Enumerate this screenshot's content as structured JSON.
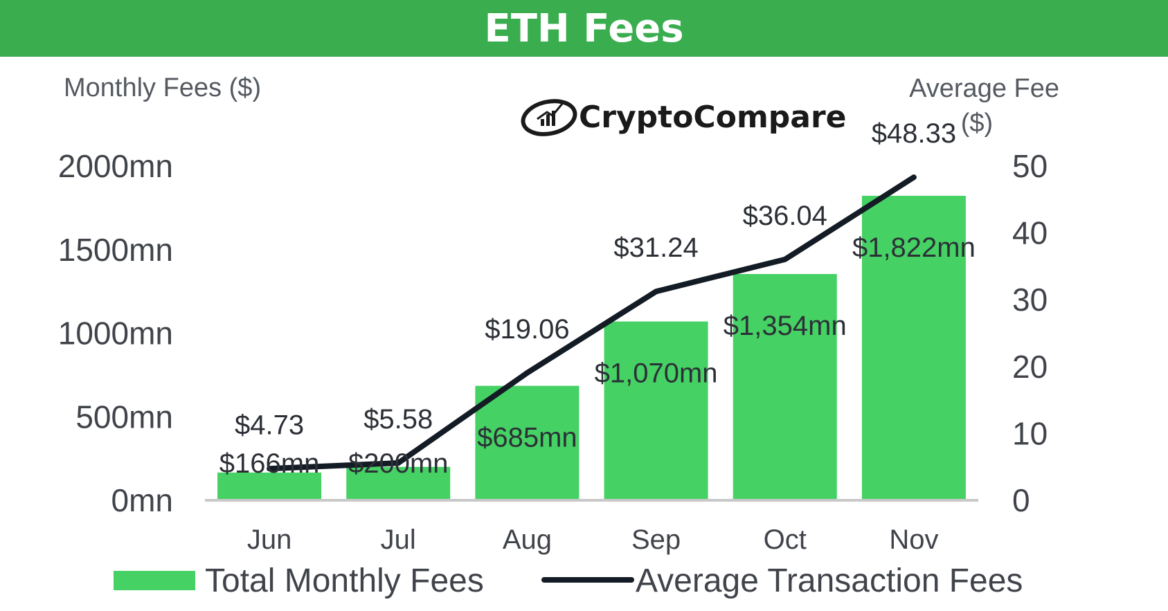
{
  "header": {
    "title": "ETH Fees"
  },
  "logo": {
    "text": "CryptoCompare",
    "icon": "chart-logo-icon"
  },
  "colors": {
    "header": "#3aae4f",
    "bar": "#45d164",
    "line": "#131b24",
    "axis": "#c9c9c9"
  },
  "chart_data": {
    "type": "bar",
    "categories": [
      "Jun",
      "Jul",
      "Aug",
      "Sep",
      "Oct",
      "Nov"
    ],
    "series": [
      {
        "name": "Total Monthly Fees",
        "type": "bar",
        "axis": "left",
        "values": [
          166,
          200,
          685,
          1070,
          1354,
          1822
        ],
        "labels": [
          "$166mn",
          "$200mn",
          "$685mn",
          "$1,070mn",
          "$1,354mn",
          "$1,822mn"
        ]
      },
      {
        "name": "Average Transaction Fees",
        "type": "line",
        "axis": "right",
        "values": [
          4.73,
          5.58,
          19.06,
          31.24,
          36.04,
          48.33
        ],
        "labels": [
          "$4.73",
          "$5.58",
          "$19.06",
          "$31.24",
          "$36.04",
          "$48.33"
        ]
      }
    ],
    "y_left": {
      "label": "Monthly Fees ($)",
      "lim": [
        0,
        2000
      ],
      "ticks": [
        0,
        500,
        1000,
        1500,
        2000
      ],
      "tick_labels": [
        "0mn",
        "500mn",
        "1000mn",
        "1500mn",
        "2000mn"
      ]
    },
    "y_right": {
      "label_lines": [
        "Average Fee",
        "($)"
      ],
      "lim": [
        0,
        50
      ],
      "ticks": [
        0,
        10,
        20,
        30,
        40,
        50
      ],
      "tick_labels": [
        "0",
        "10",
        "20",
        "30",
        "40",
        "50"
      ]
    },
    "grid": false,
    "legend": "bottom"
  }
}
